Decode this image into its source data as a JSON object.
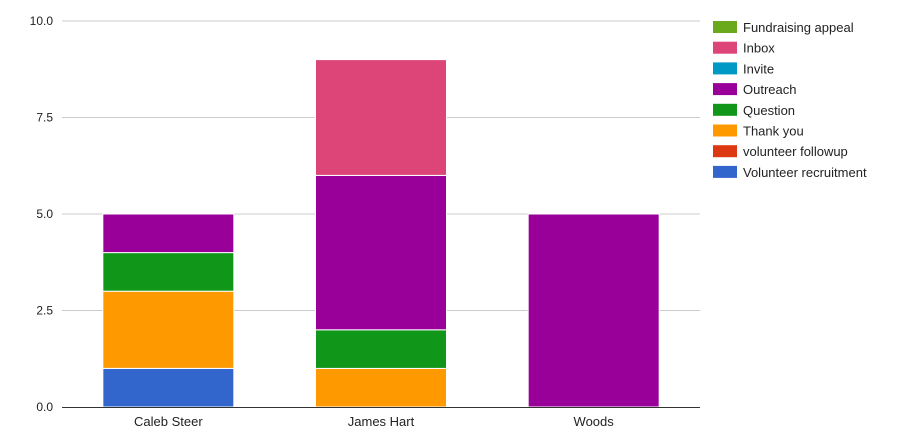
{
  "chart_data": {
    "type": "bar",
    "stacked": true,
    "categories": [
      "Caleb Steer",
      "James Hart",
      "Woods"
    ],
    "ylim": [
      0,
      10
    ],
    "yticks": [
      "0.0",
      "2.5",
      "5.0",
      "7.5",
      "10.0"
    ],
    "ytick_values": [
      0,
      2.5,
      5,
      7.5,
      10
    ],
    "grid": true,
    "legend_position": "right",
    "series": [
      {
        "name": "Fundraising appeal",
        "color": "#6aa81c",
        "values": [
          0,
          0,
          0
        ]
      },
      {
        "name": "Inbox",
        "color": "#dd4477",
        "values": [
          0,
          3,
          0
        ]
      },
      {
        "name": "Invite",
        "color": "#0099c6",
        "values": [
          0,
          0,
          0
        ]
      },
      {
        "name": "Outreach",
        "color": "#990099",
        "values": [
          1,
          4,
          5
        ]
      },
      {
        "name": "Question",
        "color": "#109618",
        "values": [
          1,
          1,
          0
        ]
      },
      {
        "name": "Thank you",
        "color": "#ff9900",
        "values": [
          2,
          1,
          0
        ]
      },
      {
        "name": "volunteer followup",
        "color": "#dc3912",
        "values": [
          0,
          0,
          0
        ]
      },
      {
        "name": "Volunteer recruitment",
        "color": "#3366cc",
        "values": [
          1,
          0,
          0
        ]
      }
    ],
    "stack_order": [
      "Volunteer recruitment",
      "Thank you",
      "Question",
      "Outreach",
      "Inbox",
      "volunteer followup",
      "Invite",
      "Fundraising appeal"
    ]
  }
}
